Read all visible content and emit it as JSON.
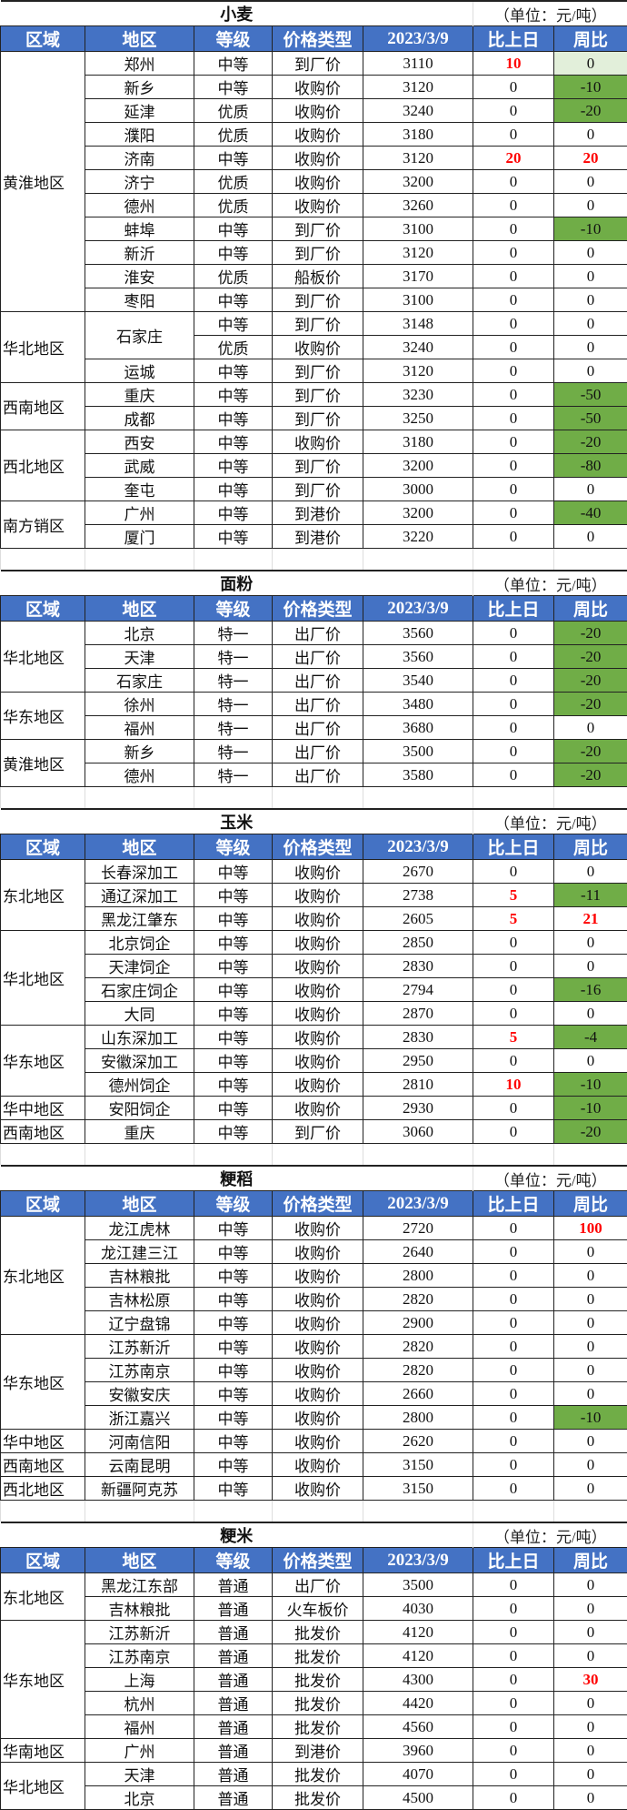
{
  "colors": {
    "header_bg": "#4472C4",
    "down_fill": "#70AD47",
    "light_fill": "#E2EFDA",
    "up_text": "#FF0000"
  },
  "headers": [
    "区域",
    "地区",
    "等级",
    "价格类型",
    "2023/3/9",
    "比上日",
    "周比"
  ],
  "unit": "（单位：元/吨）",
  "sections": [
    {
      "title": "小麦",
      "groups": [
        {
          "region": "黄淮地区",
          "rows": [
            [
              "郑州",
              "中等",
              "到厂价",
              "3110",
              "10",
              "0",
              "light"
            ],
            [
              "新乡",
              "中等",
              "收购价",
              "3120",
              "0",
              "-10"
            ],
            [
              "延津",
              "优质",
              "收购价",
              "3240",
              "0",
              "-20"
            ],
            [
              "濮阳",
              "优质",
              "收购价",
              "3180",
              "0",
              "0"
            ],
            [
              "济南",
              "中等",
              "收购价",
              "3120",
              "20",
              "20"
            ],
            [
              "济宁",
              "优质",
              "收购价",
              "3200",
              "0",
              "0"
            ],
            [
              "德州",
              "优质",
              "收购价",
              "3260",
              "0",
              "0"
            ],
            [
              "蚌埠",
              "中等",
              "到厂价",
              "3100",
              "0",
              "-10"
            ],
            [
              "新沂",
              "中等",
              "到厂价",
              "3120",
              "0",
              "0"
            ],
            [
              "淮安",
              "优质",
              "船板价",
              "3170",
              "0",
              "0"
            ],
            [
              "枣阳",
              "中等",
              "到厂价",
              "3100",
              "0",
              "0"
            ]
          ]
        },
        {
          "region": "华北地区",
          "rows": [
            [
              "石家庄",
              "中等",
              "到厂价",
              "3148",
              "0",
              "0"
            ],
            [
              null,
              "优质",
              "收购价",
              "3240",
              "0",
              "0"
            ],
            [
              "运城",
              "中等",
              "到厂价",
              "3120",
              "0",
              "0"
            ]
          ]
        },
        {
          "region": "西南地区",
          "rows": [
            [
              "重庆",
              "中等",
              "到厂价",
              "3230",
              "0",
              "-50"
            ],
            [
              "成都",
              "中等",
              "到厂价",
              "3250",
              "0",
              "-50"
            ]
          ]
        },
        {
          "region": "西北地区",
          "rows": [
            [
              "西安",
              "中等",
              "收购价",
              "3180",
              "0",
              "-20"
            ],
            [
              "武威",
              "中等",
              "到厂价",
              "3200",
              "0",
              "-80"
            ],
            [
              "奎屯",
              "中等",
              "到厂价",
              "3000",
              "0",
              "0"
            ]
          ]
        },
        {
          "region": "南方销区",
          "rows": [
            [
              "广州",
              "中等",
              "到港价",
              "3200",
              "0",
              "-40"
            ],
            [
              "厦门",
              "中等",
              "到港价",
              "3220",
              "0",
              "0"
            ]
          ]
        }
      ]
    },
    {
      "title": "面粉",
      "groups": [
        {
          "region": "华北地区",
          "rows": [
            [
              "北京",
              "特一",
              "出厂价",
              "3560",
              "0",
              "-20"
            ],
            [
              "天津",
              "特一",
              "出厂价",
              "3560",
              "0",
              "-20"
            ],
            [
              "石家庄",
              "特一",
              "出厂价",
              "3540",
              "0",
              "-20"
            ]
          ]
        },
        {
          "region": "华东地区",
          "rows": [
            [
              "徐州",
              "特一",
              "出厂价",
              "3480",
              "0",
              "-20"
            ],
            [
              "福州",
              "特一",
              "出厂价",
              "3680",
              "0",
              "0"
            ]
          ]
        },
        {
          "region": "黄淮地区",
          "rows": [
            [
              "新乡",
              "特一",
              "出厂价",
              "3500",
              "0",
              "-20"
            ],
            [
              "德州",
              "特一",
              "出厂价",
              "3580",
              "0",
              "-20"
            ]
          ]
        }
      ]
    },
    {
      "title": "玉米",
      "groups": [
        {
          "region": "东北地区",
          "rows": [
            [
              "长春深加工",
              "中等",
              "收购价",
              "2670",
              "0",
              "0"
            ],
            [
              "通辽深加工",
              "中等",
              "收购价",
              "2738",
              "5",
              "-11"
            ],
            [
              "黑龙江肇东",
              "中等",
              "收购价",
              "2605",
              "5",
              "21"
            ]
          ]
        },
        {
          "region": "华北地区",
          "rows": [
            [
              "北京饲企",
              "中等",
              "收购价",
              "2850",
              "0",
              "0"
            ],
            [
              "天津饲企",
              "中等",
              "收购价",
              "2830",
              "0",
              "0"
            ],
            [
              "石家庄饲企",
              "中等",
              "收购价",
              "2794",
              "0",
              "-16"
            ],
            [
              "大同",
              "中等",
              "收购价",
              "2870",
              "0",
              "0"
            ]
          ]
        },
        {
          "region": "华东地区",
          "rows": [
            [
              "山东深加工",
              "中等",
              "收购价",
              "2830",
              "5",
              "-4"
            ],
            [
              "安徽深加工",
              "中等",
              "收购价",
              "2950",
              "0",
              "0"
            ],
            [
              "德州饲企",
              "中等",
              "收购价",
              "2810",
              "10",
              "-10"
            ]
          ]
        },
        {
          "region": "华中地区",
          "rows": [
            [
              "安阳饲企",
              "中等",
              "收购价",
              "2930",
              "0",
              "-10"
            ]
          ]
        },
        {
          "region": "西南地区",
          "rows": [
            [
              "重庆",
              "中等",
              "到厂价",
              "3060",
              "0",
              "-20"
            ]
          ]
        }
      ]
    },
    {
      "title": "粳稻",
      "groups": [
        {
          "region": "东北地区",
          "rows": [
            [
              "龙江虎林",
              "中等",
              "收购价",
              "2720",
              "0",
              "100"
            ],
            [
              "龙江建三江",
              "中等",
              "收购价",
              "2640",
              "0",
              "0"
            ],
            [
              "吉林粮批",
              "中等",
              "收购价",
              "2800",
              "0",
              "0"
            ],
            [
              "吉林松原",
              "中等",
              "收购价",
              "2820",
              "0",
              "0"
            ],
            [
              "辽宁盘锦",
              "中等",
              "收购价",
              "2900",
              "0",
              "0"
            ]
          ]
        },
        {
          "region": "华东地区",
          "rows": [
            [
              "江苏新沂",
              "中等",
              "收购价",
              "2820",
              "0",
              "0"
            ],
            [
              "江苏南京",
              "中等",
              "收购价",
              "2820",
              "0",
              "0"
            ],
            [
              "安徽安庆",
              "中等",
              "收购价",
              "2660",
              "0",
              "0"
            ],
            [
              "浙江嘉兴",
              "中等",
              "收购价",
              "2800",
              "0",
              "-10"
            ]
          ]
        },
        {
          "region": "华中地区",
          "rows": [
            [
              "河南信阳",
              "中等",
              "收购价",
              "2620",
              "0",
              "0"
            ]
          ]
        },
        {
          "region": "西南地区",
          "rows": [
            [
              "云南昆明",
              "中等",
              "收购价",
              "3150",
              "0",
              "0"
            ]
          ]
        },
        {
          "region": "西北地区",
          "rows": [
            [
              "新疆阿克苏",
              "中等",
              "收购价",
              "3150",
              "0",
              "0"
            ]
          ]
        }
      ]
    },
    {
      "title": "粳米",
      "groups": [
        {
          "region": "东北地区",
          "rows": [
            [
              "黑龙江东部",
              "普通",
              "出厂价",
              "3500",
              "0",
              "0"
            ],
            [
              "吉林粮批",
              "普通",
              "火车板价",
              "4030",
              "0",
              "0"
            ]
          ]
        },
        {
          "region": "华东地区",
          "rows": [
            [
              "江苏新沂",
              "普通",
              "批发价",
              "4120",
              "0",
              "0"
            ],
            [
              "江苏南京",
              "普通",
              "批发价",
              "4120",
              "0",
              "0"
            ],
            [
              "上海",
              "普通",
              "批发价",
              "4300",
              "0",
              "30"
            ],
            [
              "杭州",
              "普通",
              "批发价",
              "4420",
              "0",
              "0"
            ],
            [
              "福州",
              "普通",
              "批发价",
              "4560",
              "0",
              "0"
            ]
          ]
        },
        {
          "region": "华南地区",
          "rows": [
            [
              "广州",
              "普通",
              "到港价",
              "3960",
              "0",
              "0"
            ]
          ]
        },
        {
          "region": "华北地区",
          "rows": [
            [
              "天津",
              "普通",
              "批发价",
              "4070",
              "0",
              "0"
            ],
            [
              "北京",
              "普通",
              "批发价",
              "4500",
              "0",
              "0"
            ]
          ]
        }
      ]
    }
  ]
}
